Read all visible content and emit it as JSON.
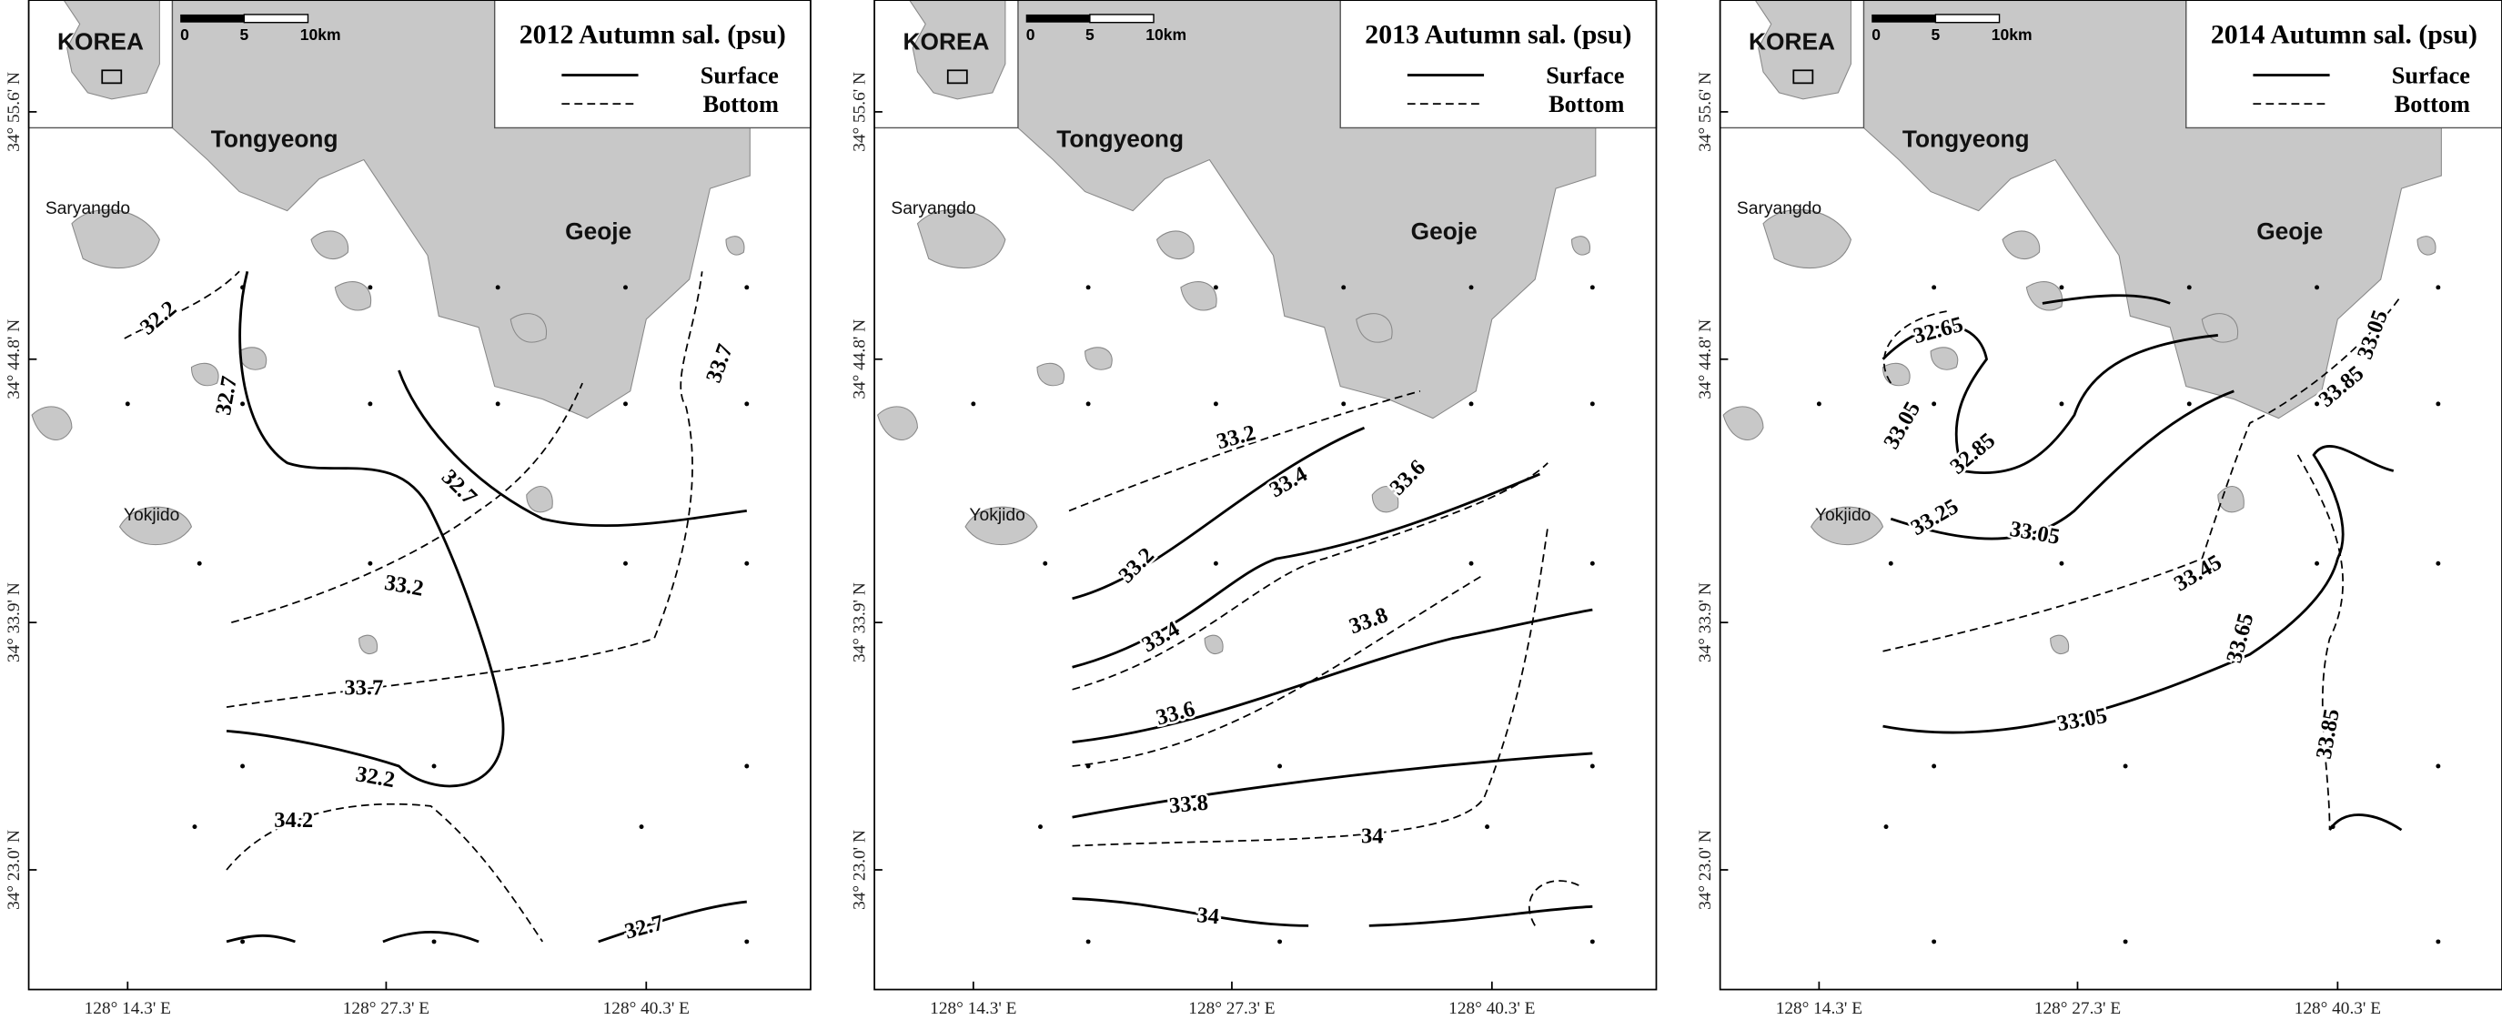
{
  "panels": [
    {
      "title": "2012 Autumn sal. (psu)",
      "legend": [
        "Surface",
        "Bottom"
      ],
      "inset_label": "KOREA",
      "scale_labels": [
        "0",
        "5",
        "10km"
      ],
      "places": [
        "Tongyeong",
        "Geoje",
        "Saryangdo",
        "Yokjido"
      ],
      "lat_labels": [
        "34° 55.6' N",
        "34° 44.8' N",
        "34° 33.9' N",
        "34° 23.0' N"
      ],
      "lon_labels": [
        "128° 14.3' E",
        "128° 27.3' E",
        "128° 40.3' E"
      ],
      "contour_labels": [
        "32.2",
        "32.7",
        "32.7",
        "33.2",
        "33.7",
        "32.2",
        "34.2",
        "32.7",
        "33.7"
      ]
    },
    {
      "title": "2013 Autumn sal. (psu)",
      "legend": [
        "Surface",
        "Bottom"
      ],
      "inset_label": "KOREA",
      "scale_labels": [
        "0",
        "5",
        "10km"
      ],
      "places": [
        "Tongyeong",
        "Geoje",
        "Saryangdo",
        "Yokjido"
      ],
      "lat_labels": [
        "34° 55.6' N",
        "34° 44.8' N",
        "34° 33.9' N",
        "34° 23.0' N"
      ],
      "lon_labels": [
        "128° 14.3' E",
        "128° 27.3' E",
        "128° 40.3' E"
      ],
      "contour_labels": [
        "33.2",
        "33.4",
        "33.6",
        "33.2",
        "33.4",
        "33.8",
        "33.6",
        "33.8",
        "34",
        "34"
      ]
    },
    {
      "title": "2014 Autumn sal. (psu)",
      "legend": [
        "Surface",
        "Bottom"
      ],
      "inset_label": "KOREA",
      "scale_labels": [
        "0",
        "5",
        "10km"
      ],
      "places": [
        "Tongyeong",
        "Geoje",
        "Saryangdo",
        "Yokjido"
      ],
      "lat_labels": [
        "34° 55.6' N",
        "34° 44.8' N",
        "34° 33.9' N",
        "34° 23.0' N"
      ],
      "lon_labels": [
        "128° 14.3' E",
        "128° 27.3' E",
        "128° 40.3' E"
      ],
      "contour_labels": [
        "32.65",
        "33.05",
        "32.85",
        "33.25",
        "33.05",
        "33.85",
        "33.05",
        "33.45",
        "33.65",
        "33.05",
        "33.85"
      ]
    }
  ]
}
